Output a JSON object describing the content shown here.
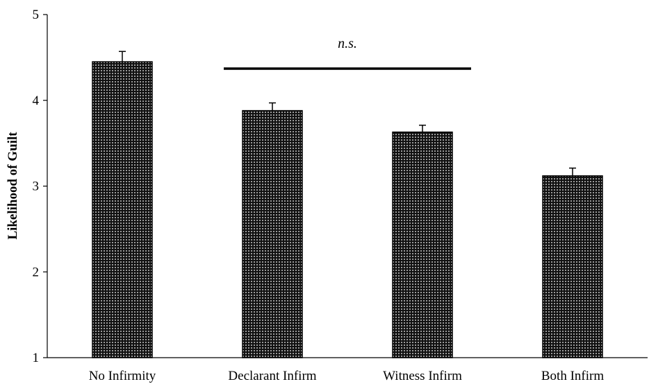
{
  "chart_data": {
    "type": "bar",
    "categories": [
      "No Infirmity",
      "Declarant Infirm",
      "Witness Infirm",
      "Both Infirm"
    ],
    "values": [
      4.45,
      3.88,
      3.63,
      3.12
    ],
    "error": [
      0.12,
      0.09,
      0.08,
      0.09
    ],
    "ylabel": "Likelihood of Guilt",
    "ylim": [
      1,
      5
    ],
    "yticks": [
      "1",
      "2",
      "3",
      "4",
      "5"
    ],
    "grid": false,
    "legend": "none",
    "bar_fill": "dotted-black",
    "annotation": {
      "text": "n.s.",
      "from": "Declarant Infirm",
      "to": "Witness Infirm",
      "y": 4.37
    }
  }
}
